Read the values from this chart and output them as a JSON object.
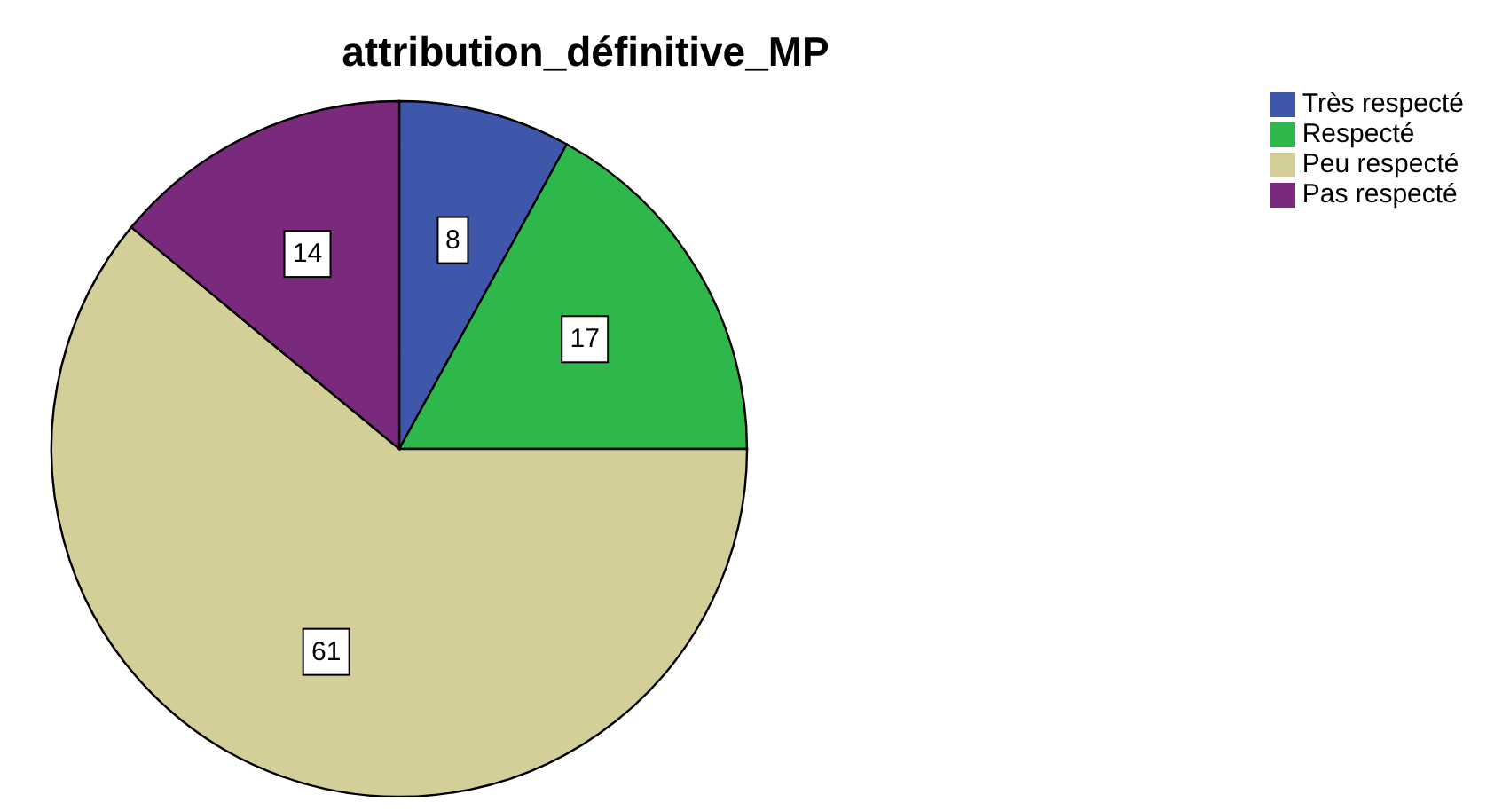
{
  "chart_data": {
    "type": "pie",
    "title": "attribution_définitive_MP",
    "categories": [
      "Très respecté",
      "Respecté",
      "Peu respecté",
      "Pas respecté"
    ],
    "values": [
      8,
      17,
      61,
      14
    ],
    "colors": [
      "#3e57ab",
      "#2eb84b",
      "#d4ce98",
      "#7a2a7c"
    ],
    "data_labels": true,
    "legend": "top right"
  }
}
